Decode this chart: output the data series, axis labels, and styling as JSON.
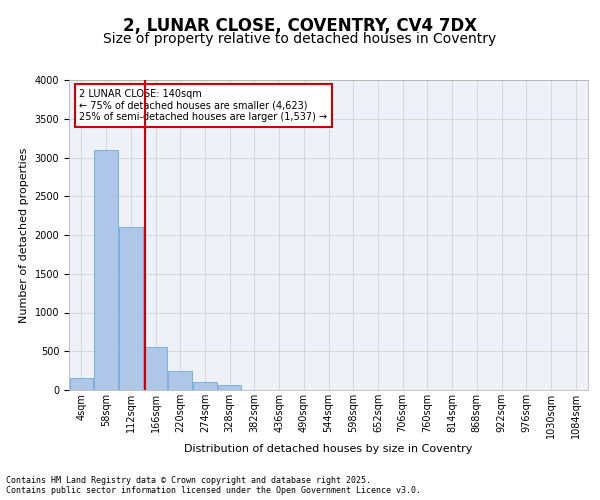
{
  "title_line1": "2, LUNAR CLOSE, COVENTRY, CV4 7DX",
  "title_line2": "Size of property relative to detached houses in Coventry",
  "xlabel": "Distribution of detached houses by size in Coventry",
  "ylabel": "Number of detached properties",
  "bin_labels": [
    "4sqm",
    "58sqm",
    "112sqm",
    "166sqm",
    "220sqm",
    "274sqm",
    "328sqm",
    "382sqm",
    "436sqm",
    "490sqm",
    "544sqm",
    "598sqm",
    "652sqm",
    "706sqm",
    "760sqm",
    "814sqm",
    "868sqm",
    "922sqm",
    "976sqm",
    "1030sqm",
    "1084sqm"
  ],
  "bar_values": [
    150,
    3100,
    2100,
    550,
    250,
    100,
    70,
    0,
    0,
    0,
    0,
    0,
    0,
    0,
    0,
    0,
    0,
    0,
    0,
    0,
    0
  ],
  "bar_color": "#aec6e8",
  "bar_edge_color": "#5a9fd4",
  "grid_color": "#cccccc",
  "background_color": "#eef2f8",
  "vline_x": 2.58,
  "vline_color": "#cc0000",
  "annotation_text": "2 LUNAR CLOSE: 140sqm\n← 75% of detached houses are smaller (4,623)\n25% of semi-detached houses are larger (1,537) →",
  "annotation_box_color": "#cc0000",
  "ylim": [
    0,
    4000
  ],
  "yticks": [
    0,
    500,
    1000,
    1500,
    2000,
    2500,
    3000,
    3500,
    4000
  ],
  "footer_text": "Contains HM Land Registry data © Crown copyright and database right 2025.\nContains public sector information licensed under the Open Government Licence v3.0.",
  "title_fontsize": 12,
  "subtitle_fontsize": 10,
  "axis_fontsize": 8,
  "tick_fontsize": 7
}
